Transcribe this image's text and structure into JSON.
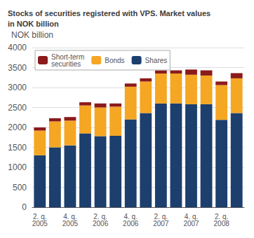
{
  "chart_data": {
    "type": "bar",
    "title": "Stocks of securities registered with VPS. Market values\nin NOK billion",
    "ylabel": "NOK billion",
    "categories": [
      "2. q.\n2005",
      null,
      "4. q.\n2005",
      null,
      "2. q.\n2006",
      null,
      "4. q.\n2006",
      null,
      "2. q.\n2007",
      null,
      "4. q.\n2007",
      null,
      "2. q.\n2008",
      null
    ],
    "series": [
      {
        "name": "Shares",
        "color": "#1c3f6e",
        "values": [
          1300,
          1500,
          1550,
          1850,
          1780,
          1790,
          2200,
          2360,
          2600,
          2600,
          2580,
          2580,
          2190,
          2360
        ]
      },
      {
        "name": "Bonds",
        "color": "#f5a623",
        "values": [
          620,
          650,
          620,
          700,
          720,
          730,
          820,
          790,
          750,
          750,
          740,
          720,
          870,
          870
        ]
      },
      {
        "name": "Short-term\nsecurities",
        "color": "#8b1a1a",
        "values": [
          80,
          80,
          90,
          80,
          100,
          80,
          80,
          80,
          80,
          80,
          130,
          130,
          90,
          130
        ]
      }
    ],
    "stacked": true,
    "ylim": [
      0,
      4000
    ],
    "yticks": [
      0,
      500,
      1000,
      1500,
      2000,
      2500,
      3000,
      3500,
      4000
    ],
    "grid": true,
    "legend": "upper left"
  }
}
